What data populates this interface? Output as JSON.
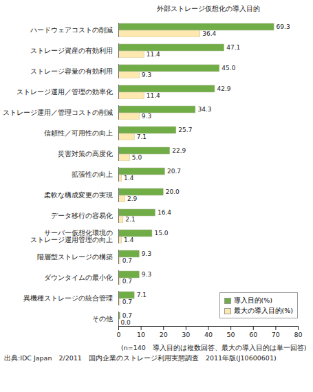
{
  "chart_data": {
    "type": "bar",
    "orientation": "horizontal",
    "title": "外部ストレージ仮想化の導入目的",
    "caption": "(n=140　導入目的は複数回答、最大の導入目的は単一回答)",
    "source": "出典:IDC Japan　2/2011　国内企業のストレージ利用実態調査　2011年版(J10600601)",
    "categories": [
      "ハードウェアコストの削減",
      "ストレージ資産の有効利用",
      "ストレージ容量の有効利用",
      "ストレージ運用／管理の効率化",
      "ストレージ運用／管理コストの削減",
      "信頼性／可用性の向上",
      "災害対策の高度化",
      "拡張性の向上",
      "柔軟な構成変更の実現",
      "データ移行の容易化",
      "サーバー仮想化環境の\nストレージ運用管理の向上",
      "階層型ストレージの構築",
      "ダウンタイムの最小化",
      "異機種ストレージの統合管理",
      "その他"
    ],
    "series": [
      {
        "name": "導入目的(%)",
        "color": "#70ad47",
        "values": [
          69.3,
          47.1,
          45.0,
          42.9,
          34.3,
          25.7,
          22.9,
          20.7,
          20.0,
          16.4,
          15.0,
          9.3,
          9.3,
          7.1,
          0.7
        ],
        "value_labels": [
          "69.3",
          "47.1",
          "45.0",
          "42.9",
          "34.3",
          "25.7",
          "22.9",
          "20.7",
          "20.0",
          "16.4",
          "15.0",
          "9.3",
          "9.3",
          "7.1",
          "0.7"
        ]
      },
      {
        "name": "最大の導入目的(%)",
        "color": "#fde9b0",
        "values": [
          36.4,
          11.4,
          9.3,
          11.4,
          9.3,
          7.1,
          5.0,
          1.4,
          2.9,
          2.1,
          1.4,
          0.7,
          0.7,
          0.7,
          0.0
        ],
        "value_labels": [
          "36.4",
          "11.4",
          "9.3",
          "11.4",
          "9.3",
          "7.1",
          "5.0",
          "1.4",
          "2.9",
          "2.1",
          "1.4",
          "0.7",
          "0.7",
          "0.7",
          "0.0"
        ]
      }
    ],
    "xlim": [
      0,
      80
    ],
    "xticks": [
      0,
      10,
      20,
      30,
      40,
      50,
      60,
      70,
      80
    ],
    "grid": false,
    "data_labels": true,
    "legend": "bottom-right"
  }
}
